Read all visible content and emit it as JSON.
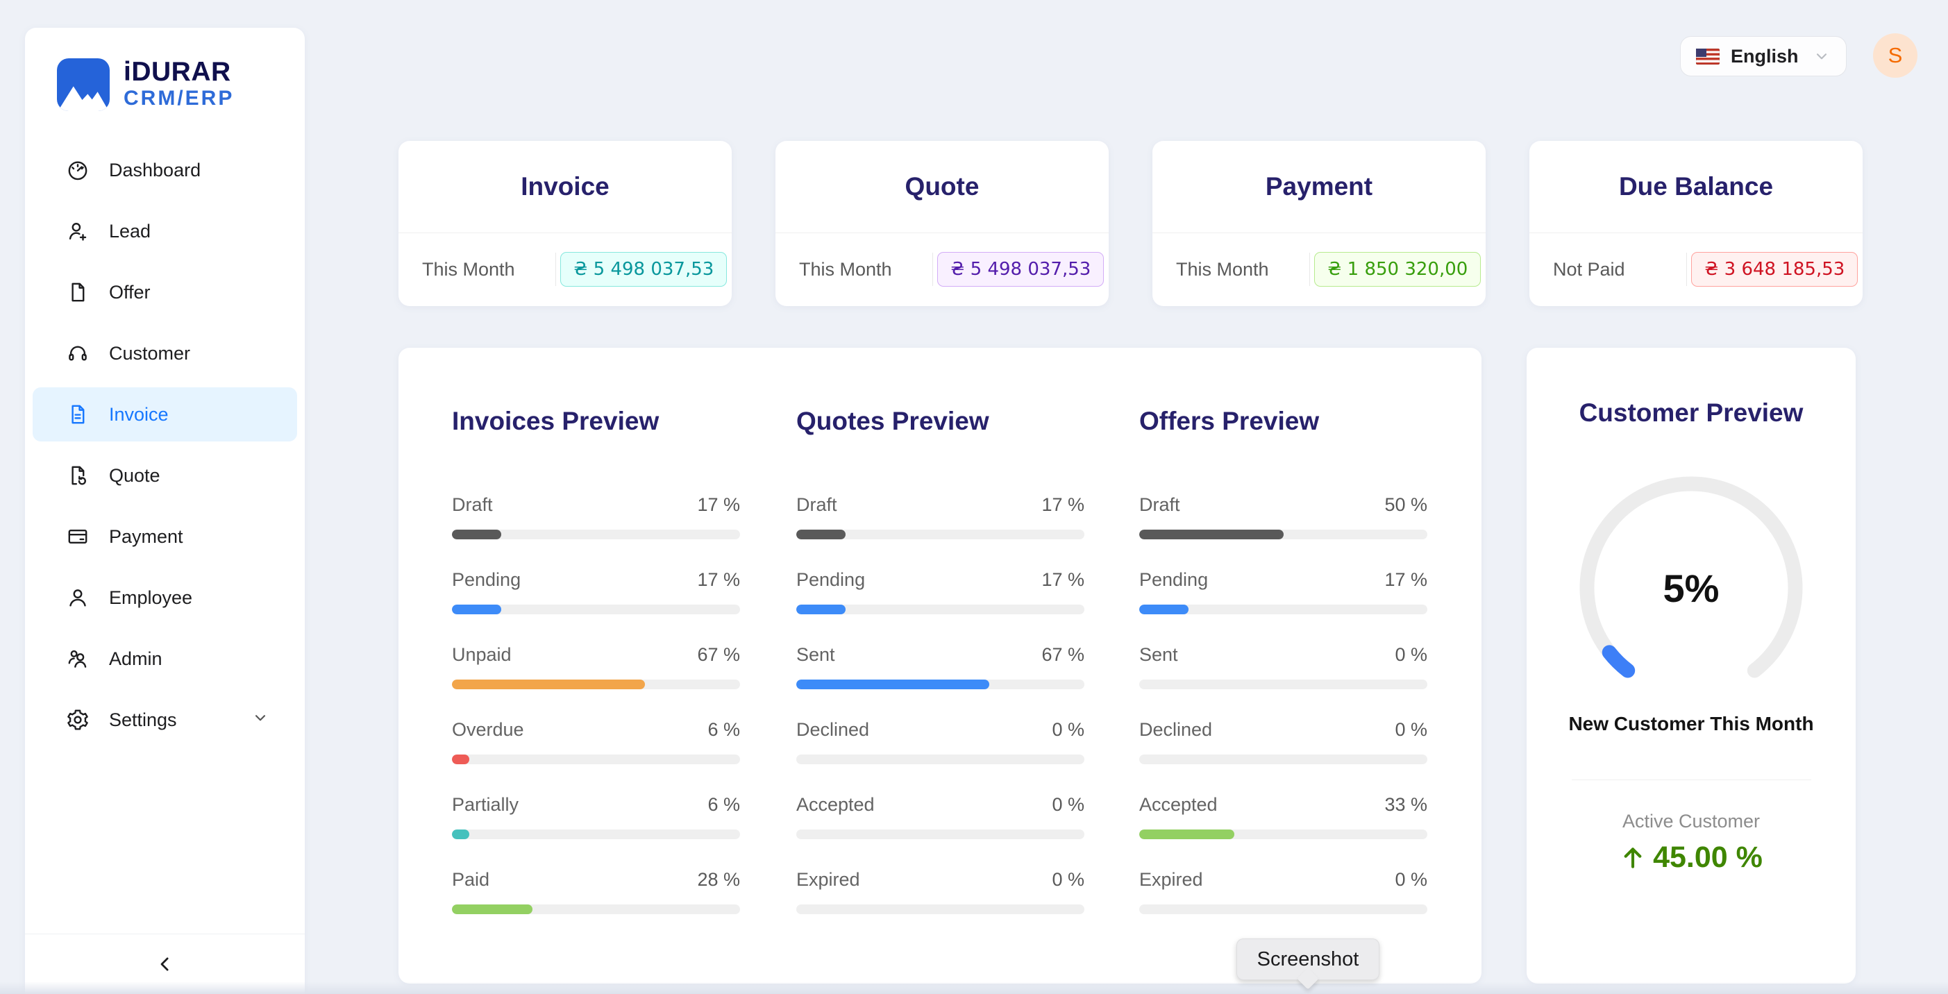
{
  "brand": {
    "name_top": "iDURAR",
    "name_bottom": "CRM/ERP",
    "logo_color": "#2563d9"
  },
  "topbar": {
    "language_label": "English",
    "avatar_initial": "S",
    "avatar_bg": "#fde3cf",
    "avatar_color": "#f56a00"
  },
  "sidebar": {
    "items": [
      {
        "label": "Dashboard",
        "icon": "dashboard-icon",
        "active": false
      },
      {
        "label": "Lead",
        "icon": "user-add-icon",
        "active": false
      },
      {
        "label": "Offer",
        "icon": "file-icon",
        "active": false
      },
      {
        "label": "Customer",
        "icon": "headset-icon",
        "active": false
      },
      {
        "label": "Invoice",
        "icon": "file-text-icon",
        "active": true
      },
      {
        "label": "Quote",
        "icon": "file-sync-icon",
        "active": false
      },
      {
        "label": "Payment",
        "icon": "credit-card-icon",
        "active": false
      },
      {
        "label": "Employee",
        "icon": "user-icon",
        "active": false
      },
      {
        "label": "Admin",
        "icon": "users-icon",
        "active": false
      },
      {
        "label": "Settings",
        "icon": "gear-icon",
        "active": false,
        "expandable": true
      }
    ],
    "active_bg": "#e6f4ff",
    "active_color": "#1677ff"
  },
  "summary_cards": [
    {
      "title": "Invoice",
      "period_label": "This Month",
      "amount": "₴ 5 498 037,53",
      "badge_color": "#08979c",
      "badge_bg": "#e6fffb",
      "badge_border": "#87e8de"
    },
    {
      "title": "Quote",
      "period_label": "This Month",
      "amount": "₴ 5 498 037,53",
      "badge_color": "#531dab",
      "badge_bg": "#f9f0ff",
      "badge_border": "#d3adf7"
    },
    {
      "title": "Payment",
      "period_label": "This Month",
      "amount": "₴ 1 850 320,00",
      "badge_color": "#389e0d",
      "badge_bg": "#f6ffed",
      "badge_border": "#b7eb8f"
    },
    {
      "title": "Due Balance",
      "period_label": "Not Paid",
      "amount": "₴ 3 648 185,53",
      "badge_color": "#cf1322",
      "badge_bg": "#fff1f0",
      "badge_border": "#ffa39e"
    }
  ],
  "previews": [
    {
      "title": "Invoices Preview",
      "rows": [
        {
          "label": "Draft",
          "percent": 17,
          "color": "#595959"
        },
        {
          "label": "Pending",
          "percent": 17,
          "color": "#3d8bf8"
        },
        {
          "label": "Unpaid",
          "percent": 67,
          "color": "#f2a54a"
        },
        {
          "label": "Overdue",
          "percent": 6,
          "color": "#ee5b56"
        },
        {
          "label": "Partially",
          "percent": 6,
          "color": "#45c1bd"
        },
        {
          "label": "Paid",
          "percent": 28,
          "color": "#93d062"
        }
      ]
    },
    {
      "title": "Quotes Preview",
      "rows": [
        {
          "label": "Draft",
          "percent": 17,
          "color": "#595959"
        },
        {
          "label": "Pending",
          "percent": 17,
          "color": "#3d8bf8"
        },
        {
          "label": "Sent",
          "percent": 67,
          "color": "#3d8bf8"
        },
        {
          "label": "Declined",
          "percent": 0,
          "color": "#ee5b56"
        },
        {
          "label": "Accepted",
          "percent": 0,
          "color": "#93d062"
        },
        {
          "label": "Expired",
          "percent": 0,
          "color": "#f2a54a"
        }
      ]
    },
    {
      "title": "Offers Preview",
      "rows": [
        {
          "label": "Draft",
          "percent": 50,
          "color": "#595959"
        },
        {
          "label": "Pending",
          "percent": 17,
          "color": "#3d8bf8"
        },
        {
          "label": "Sent",
          "percent": 0,
          "color": "#3d8bf8"
        },
        {
          "label": "Declined",
          "percent": 0,
          "color": "#ee5b56"
        },
        {
          "label": "Accepted",
          "percent": 33,
          "color": "#93d062"
        },
        {
          "label": "Expired",
          "percent": 0,
          "color": "#f2a54a"
        }
      ]
    }
  ],
  "customer_panel": {
    "title": "Customer Preview",
    "gauge": {
      "percent": 5,
      "display": "5%",
      "color": "#3d7ff7",
      "track": "#ececec"
    },
    "caption": "New Customer This Month",
    "stat_label": "Active Customer",
    "stat_value": "45.00 %",
    "stat_color": "#3f8600"
  },
  "tooltip": {
    "text": "Screenshot"
  }
}
